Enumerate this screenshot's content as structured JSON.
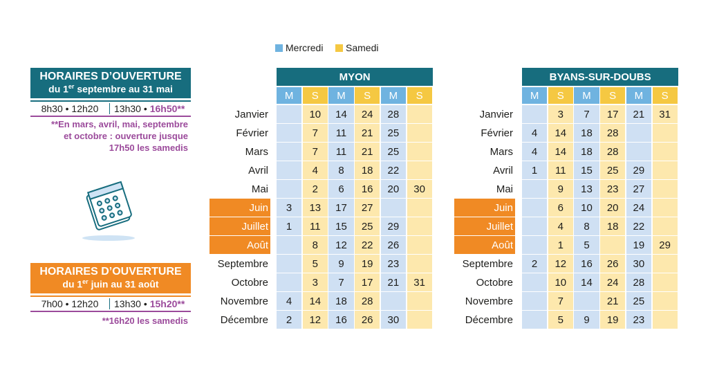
{
  "legend": {
    "mercredi": "Mercredi",
    "samedi": "Samedi"
  },
  "panels": [
    {
      "title": "HORAIRES D’OUVERTURE",
      "subtitle": {
        "pre": "du 1",
        "sup": "er",
        "post": " septembre au 31 mai"
      },
      "hours": [
        "8h30 • 12h20",
        "13h30 •",
        "16h50**"
      ],
      "note": [
        "**En mars, avril, mai, septembre",
        "et octobre : ouverture jusque",
        "17h50 les samedis"
      ]
    },
    {
      "title": "HORAIRES D’OUVERTURE",
      "subtitle": {
        "pre": "du 1",
        "sup": "er",
        "post": " juin au 31 août"
      },
      "hours": [
        "7h00 • 12h20",
        "13h30 •",
        "15h20**"
      ],
      "note": [
        "**16h20 les samedis"
      ]
    }
  ],
  "tables": [
    {
      "title": "MYON",
      "columns": [
        "M",
        "S",
        "M",
        "S",
        "M",
        "S"
      ],
      "months": [
        "Janvier",
        "Février",
        "Mars",
        "Avril",
        "Mai",
        "Juin",
        "Juillet",
        "Août",
        "Septembre",
        "Octobre",
        "Novembre",
        "Décembre"
      ],
      "rows": [
        [
          null,
          10,
          14,
          24,
          28,
          null
        ],
        [
          null,
          7,
          11,
          21,
          25,
          null
        ],
        [
          null,
          7,
          11,
          21,
          25,
          null
        ],
        [
          null,
          4,
          8,
          18,
          22,
          null
        ],
        [
          null,
          2,
          6,
          16,
          20,
          30
        ],
        [
          3,
          13,
          17,
          27,
          null,
          null
        ],
        [
          1,
          11,
          15,
          25,
          29,
          null
        ],
        [
          null,
          8,
          12,
          22,
          26,
          null
        ],
        [
          null,
          5,
          9,
          19,
          23,
          null
        ],
        [
          null,
          3,
          7,
          17,
          21,
          31
        ],
        [
          4,
          14,
          18,
          28,
          null,
          null
        ],
        [
          2,
          12,
          16,
          26,
          30,
          null
        ]
      ]
    },
    {
      "title": "BYANS-SUR-DOUBS",
      "columns": [
        "M",
        "S",
        "M",
        "S",
        "M",
        "S"
      ],
      "months": [
        "Janvier",
        "Février",
        "Mars",
        "Avril",
        "Mai",
        "Juin",
        "Juillet",
        "Août",
        "Septembre",
        "Octobre",
        "Novembre",
        "Décembre"
      ],
      "rows": [
        [
          null,
          3,
          7,
          17,
          21,
          31
        ],
        [
          4,
          14,
          18,
          28,
          null,
          null
        ],
        [
          4,
          14,
          18,
          28,
          null,
          null
        ],
        [
          1,
          11,
          15,
          25,
          29,
          null
        ],
        [
          null,
          9,
          13,
          23,
          27,
          null
        ],
        [
          null,
          6,
          10,
          20,
          24,
          null
        ],
        [
          null,
          4,
          8,
          18,
          22,
          null
        ],
        [
          null,
          1,
          5,
          null,
          19,
          29
        ],
        [
          2,
          12,
          16,
          26,
          30,
          null
        ],
        [
          null,
          10,
          14,
          24,
          28,
          null
        ],
        [
          null,
          7,
          null,
          21,
          25,
          null
        ],
        [
          null,
          5,
          9,
          19,
          23,
          null
        ]
      ]
    }
  ]
}
